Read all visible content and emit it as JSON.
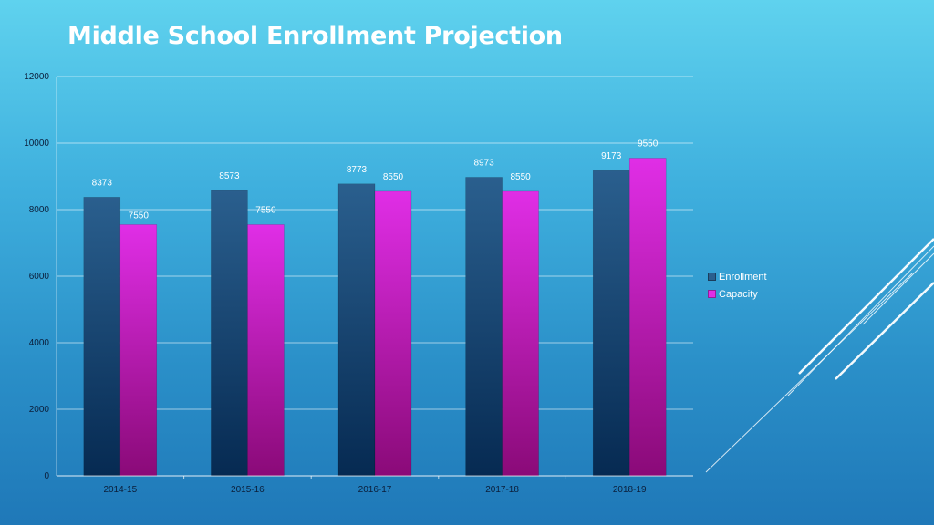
{
  "title": "Middle School Enrollment Projection",
  "colors": {
    "enrollment_top": "#2a5f8e",
    "enrollment_bottom": "#062a52",
    "capacity_top": "#e02ee6",
    "capacity_bottom": "#8a0a78"
  },
  "chart_data": {
    "type": "bar",
    "categories": [
      "2014-15",
      "2015-16",
      "2016-17",
      "2017-18",
      "2018-19"
    ],
    "series": [
      {
        "name": "Enrollment",
        "values": [
          8373,
          8573,
          8773,
          8973,
          9173
        ]
      },
      {
        "name": "Capacity",
        "values": [
          7550,
          7550,
          8550,
          8550,
          9550
        ]
      }
    ],
    "ylim": [
      0,
      12000
    ],
    "yticks": [
      0,
      2000,
      4000,
      6000,
      8000,
      10000,
      12000
    ],
    "grid": true,
    "legend": "right"
  }
}
